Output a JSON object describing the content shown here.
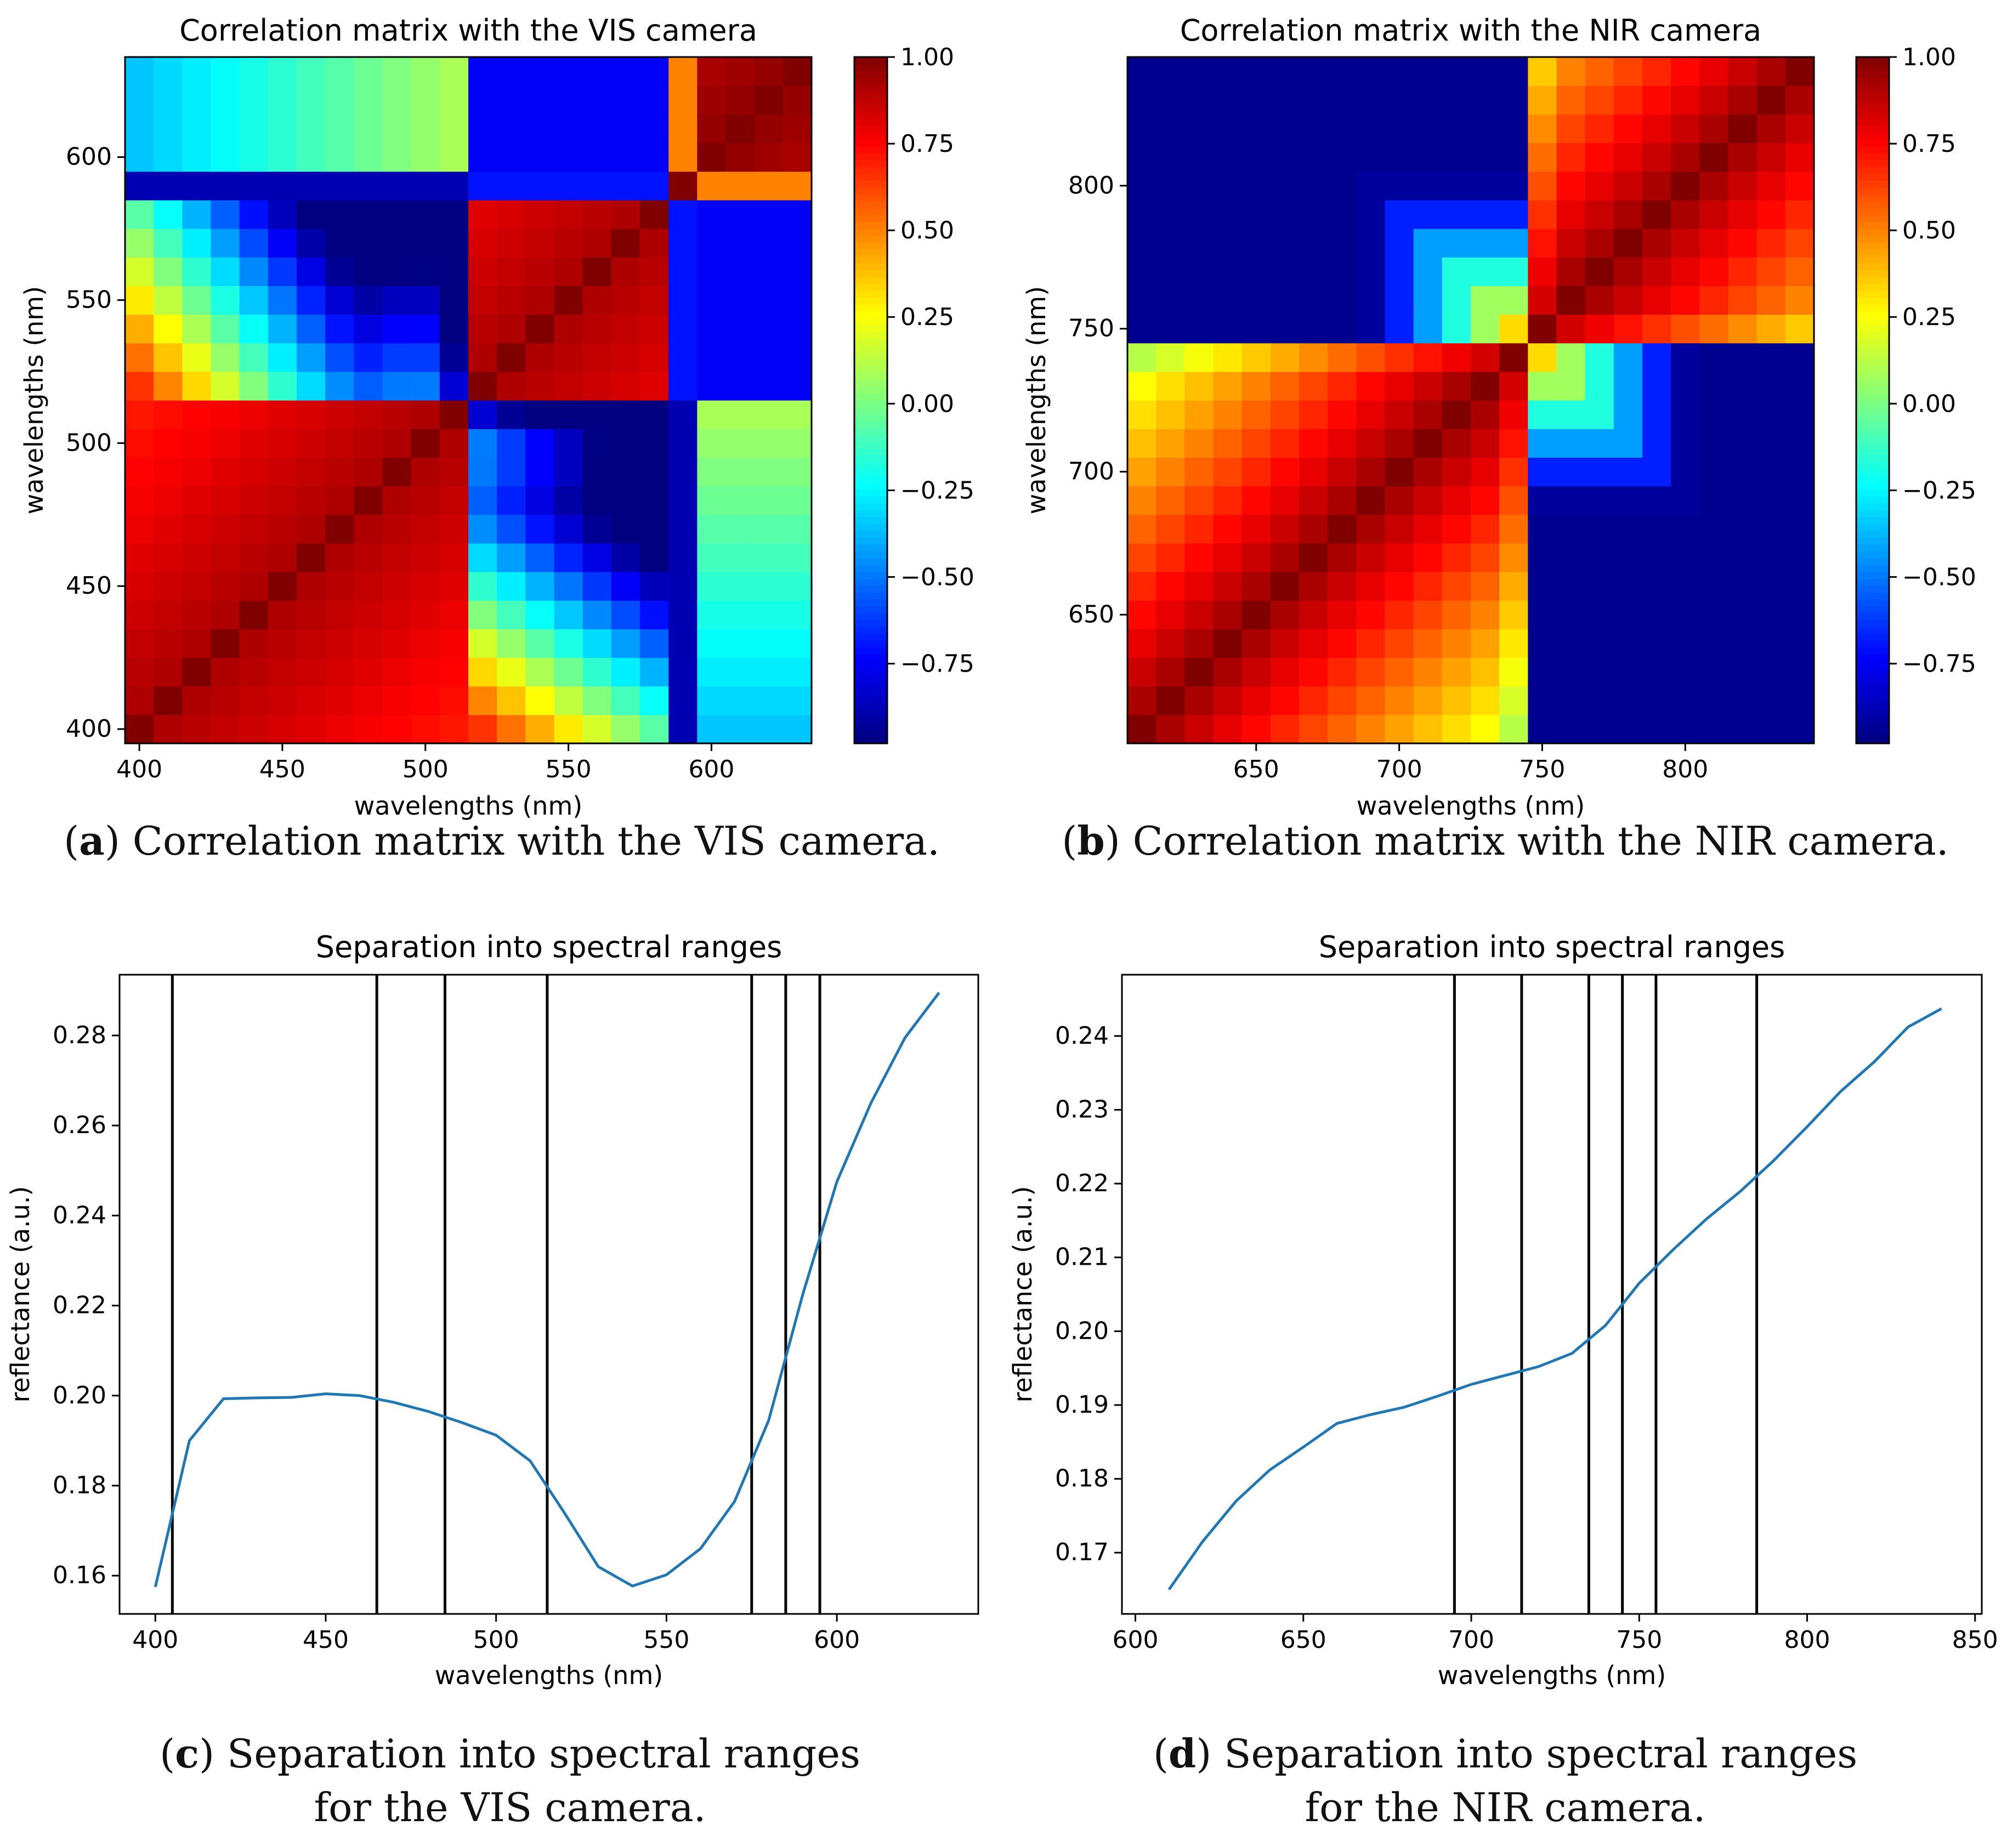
{
  "colors": {
    "line": "#1f77b4",
    "vline": "#000000",
    "frame": "#000000"
  },
  "colormap": "jet",
  "captions": [
    {
      "letter": "a",
      "text": " Correlation matrix with the VIS camera.",
      "line2": ""
    },
    {
      "letter": "b",
      "text": " Correlation matrix with the NIR camera.",
      "line2": ""
    },
    {
      "letter": "c",
      "text": " Separation into spectral ranges",
      "line2": "for the VIS camera."
    },
    {
      "letter": "d",
      "text": " Separation into spectral ranges",
      "line2": "for the NIR camera."
    }
  ],
  "chart_data": [
    {
      "type": "heatmap",
      "title": "Correlation matrix with the VIS camera",
      "xlabel": "wavelengths (nm)",
      "ylabel": "wavelengths (nm)",
      "xlim": [
        395,
        635
      ],
      "ylim": [
        395,
        635
      ],
      "xticks": [
        400,
        450,
        500,
        550,
        600
      ],
      "yticks": [
        400,
        450,
        500,
        550,
        600
      ],
      "cell_centers": [
        400,
        410,
        420,
        430,
        440,
        450,
        460,
        470,
        480,
        490,
        500,
        510,
        520,
        530,
        540,
        550,
        560,
        570,
        580,
        590,
        600,
        610,
        620,
        630
      ],
      "colorbar_range": [
        -0.98,
        1.0
      ],
      "colorbar_ticks": [
        "1.00",
        "0.75",
        "0.50",
        "0.25",
        "0.00",
        "−0.25",
        "−0.50",
        "−0.75"
      ],
      "colorbar_tick_values": [
        1.0,
        0.75,
        0.5,
        0.25,
        0.0,
        -0.25,
        -0.5,
        -0.75
      ],
      "model": "vis"
    },
    {
      "type": "heatmap",
      "title": "Correlation matrix with the NIR camera",
      "xlabel": "wavelengths (nm)",
      "ylabel": "wavelengths (nm)",
      "xlim": [
        605,
        845
      ],
      "ylim": [
        605,
        845
      ],
      "xticks": [
        650,
        700,
        750,
        800
      ],
      "yticks": [
        650,
        700,
        750,
        800
      ],
      "cell_centers": [
        610,
        620,
        630,
        640,
        650,
        660,
        670,
        680,
        690,
        700,
        710,
        720,
        730,
        740,
        750,
        760,
        770,
        780,
        790,
        800,
        810,
        820,
        830,
        840
      ],
      "colorbar_range": [
        -0.98,
        1.0
      ],
      "colorbar_ticks": [
        "1.00",
        "0.75",
        "0.50",
        "0.25",
        "0.00",
        "−0.25",
        "−0.50",
        "−0.75"
      ],
      "colorbar_tick_values": [
        1.0,
        0.75,
        0.5,
        0.25,
        0.0,
        -0.25,
        -0.5,
        -0.75
      ],
      "model": "nir"
    },
    {
      "type": "line",
      "title": "Separation into spectral ranges",
      "xlabel": "wavelengths (nm)",
      "ylabel": "reflectance (a.u.)",
      "xlim": [
        389.5,
        641.5
      ],
      "ylim": [
        0.1515,
        0.2935
      ],
      "xticks": [
        400,
        450,
        500,
        550,
        600
      ],
      "yticks": [
        0.16,
        0.18,
        0.2,
        0.22,
        0.24,
        0.26,
        0.28
      ],
      "ytick_labels": [
        "0.16",
        "0.18",
        "0.20",
        "0.22",
        "0.24",
        "0.26",
        "0.28"
      ],
      "x": [
        400,
        410,
        420,
        430,
        440,
        450,
        460,
        470,
        480,
        490,
        500,
        510,
        520,
        530,
        540,
        550,
        560,
        570,
        580,
        590,
        600,
        610,
        620,
        630
      ],
      "y": [
        0.1575,
        0.19,
        0.1993,
        0.1995,
        0.1996,
        0.2004,
        0.2,
        0.1985,
        0.1965,
        0.194,
        0.1912,
        0.1855,
        0.174,
        0.162,
        0.1577,
        0.1602,
        0.166,
        0.1765,
        0.1945,
        0.2225,
        0.2475,
        0.265,
        0.2795,
        0.2895
      ],
      "vlines": [
        405,
        465,
        485,
        515,
        575,
        585,
        595
      ]
    },
    {
      "type": "line",
      "title": "Separation into spectral ranges",
      "xlabel": "wavelengths (nm)",
      "ylabel": "reflectance (a.u.)",
      "xlim": [
        596,
        852
      ],
      "ylim": [
        0.1617,
        0.2483
      ],
      "xticks": [
        600,
        650,
        700,
        750,
        800,
        850
      ],
      "yticks": [
        0.17,
        0.18,
        0.19,
        0.2,
        0.21,
        0.22,
        0.23,
        0.24
      ],
      "ytick_labels": [
        "0.17",
        "0.18",
        "0.19",
        "0.20",
        "0.21",
        "0.22",
        "0.23",
        "0.24"
      ],
      "x": [
        610,
        620,
        630,
        640,
        650,
        660,
        670,
        680,
        690,
        700,
        710,
        720,
        730,
        740,
        750,
        760,
        770,
        780,
        790,
        800,
        810,
        820,
        830,
        840
      ],
      "y": [
        0.165,
        0.1715,
        0.177,
        0.1812,
        0.1843,
        0.1875,
        0.1887,
        0.1897,
        0.1912,
        0.1928,
        0.194,
        0.1952,
        0.197,
        0.2008,
        0.2065,
        0.211,
        0.2152,
        0.2189,
        0.2231,
        0.2277,
        0.2325,
        0.2365,
        0.2412,
        0.2437
      ],
      "vlines": [
        695,
        715,
        735,
        745,
        755,
        785
      ]
    }
  ]
}
